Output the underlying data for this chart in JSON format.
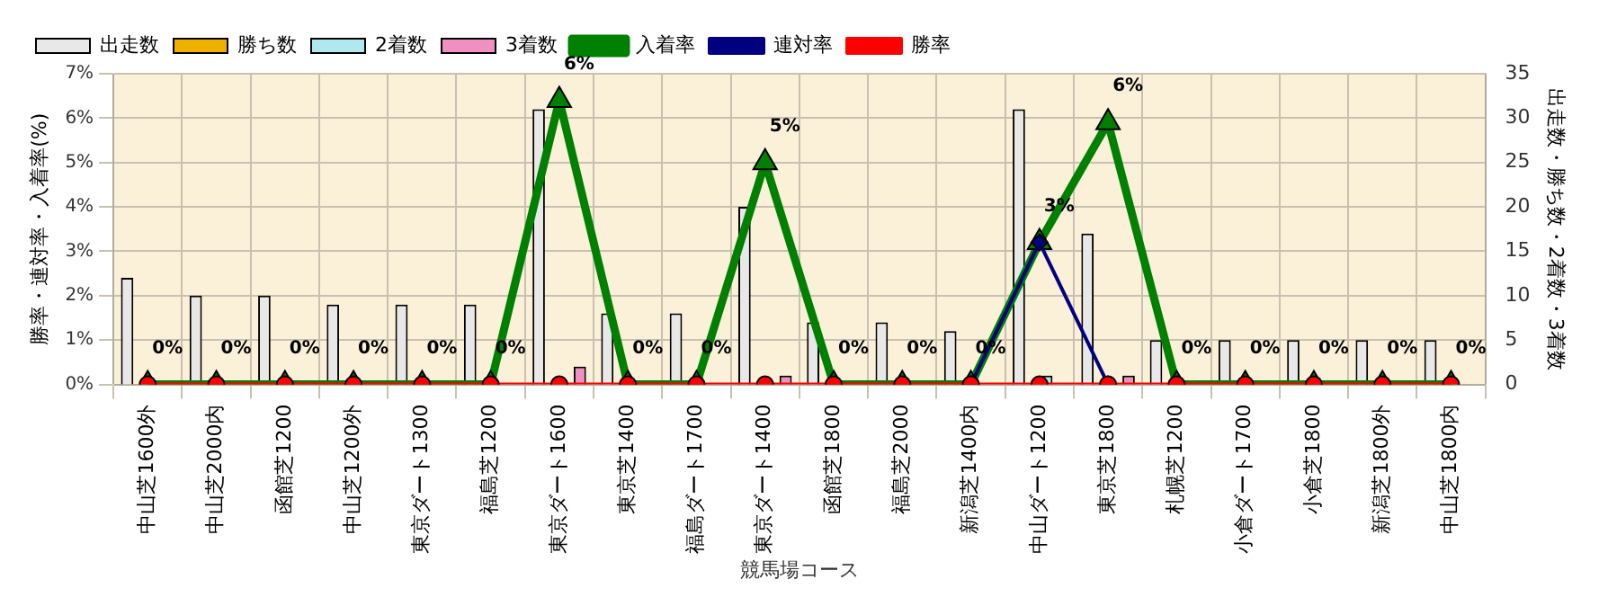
{
  "chart_data": {
    "type": "bar",
    "xlabel": "競馬場コース",
    "ylabel": "勝率・連対率・入着率(%)",
    "y2label": "出走数・勝ち数・2着数・3着数",
    "categories": [
      "中山芝1600外",
      "中山芝2000内",
      "函館芝1200",
      "中山芝1200外",
      "東京ダート1300",
      "福島芝1200",
      "東京ダート1600",
      "東京芝1400",
      "福島ダート1700",
      "東京ダート1400",
      "函館芝1800",
      "福島芝2000",
      "新潟芝1400内",
      "中山ダート1200",
      "東京芝1800",
      "札幌芝1200",
      "小倉ダート1700",
      "小倉芝1800",
      "新潟芝1800外",
      "中山芝1800内"
    ],
    "series": [
      {
        "name": "出走数",
        "axis": "y2",
        "color": "#e8e8e8",
        "values": [
          12,
          10,
          10,
          9,
          9,
          9,
          31,
          8,
          8,
          20,
          7,
          7,
          6,
          31,
          17,
          5,
          5,
          5,
          5,
          5
        ]
      },
      {
        "name": "勝ち数",
        "axis": "y2",
        "color": "#f0b000",
        "values": [
          0,
          0,
          0,
          0,
          0,
          0,
          0,
          0,
          0,
          0,
          0,
          0,
          0,
          0,
          0,
          0,
          0,
          0,
          0,
          0
        ]
      },
      {
        "name": "2着数",
        "axis": "y2",
        "color": "#b0e8f0",
        "values": [
          0,
          0,
          0,
          0,
          0,
          0,
          0,
          0,
          0,
          0,
          0,
          0,
          0,
          1,
          0,
          0,
          0,
          0,
          0,
          0
        ]
      },
      {
        "name": "3着数",
        "axis": "y2",
        "color": "#f090c0",
        "values": [
          0,
          0,
          0,
          0,
          0,
          0,
          2,
          0,
          0,
          1,
          0,
          0,
          0,
          0,
          1,
          0,
          0,
          0,
          0,
          0
        ]
      },
      {
        "name": "入着率",
        "type": "line",
        "axis": "y",
        "color": "#008000",
        "marker": "triangle",
        "values": [
          0,
          0,
          0,
          0,
          0,
          0,
          6.4,
          0,
          0,
          5,
          0,
          0,
          0,
          3.2,
          5.9,
          0,
          0,
          0,
          0,
          0
        ],
        "value_labels": [
          "0%",
          "0%",
          "0%",
          "0%",
          "0%",
          "0%",
          "6%",
          "0%",
          "0%",
          "5%",
          "0%",
          "0%",
          "0%",
          "3%",
          "6%",
          "0%",
          "0%",
          "0%",
          "0%",
          "0%"
        ]
      },
      {
        "name": "連対率",
        "type": "line",
        "axis": "y",
        "color": "#000080",
        "marker": "diamond",
        "values": [
          null,
          null,
          null,
          null,
          null,
          null,
          null,
          null,
          null,
          null,
          null,
          null,
          0,
          3.2,
          0,
          null,
          null,
          null,
          null,
          null
        ]
      },
      {
        "name": "勝率",
        "type": "line",
        "axis": "y",
        "color": "#ff0000",
        "marker": "circle",
        "values": [
          0,
          0,
          0,
          0,
          0,
          0,
          0,
          0,
          0,
          0,
          0,
          0,
          0,
          0,
          0,
          0,
          0,
          0,
          0,
          0
        ]
      }
    ],
    "ylim": [
      0,
      7
    ],
    "yticks": [
      {
        "value": 0,
        "label": "0%"
      },
      {
        "value": 1,
        "label": "1%"
      },
      {
        "value": 2,
        "label": "2%"
      },
      {
        "value": 3,
        "label": "3%"
      },
      {
        "value": 4,
        "label": "4%"
      },
      {
        "value": 5,
        "label": "5%"
      },
      {
        "value": 6,
        "label": "6%"
      },
      {
        "value": 7,
        "label": "7%"
      }
    ],
    "y2lim": [
      0,
      35
    ],
    "y2ticks": [
      0,
      5,
      10,
      15,
      20,
      25,
      30,
      35
    ],
    "grid": true,
    "legend": "top left"
  }
}
